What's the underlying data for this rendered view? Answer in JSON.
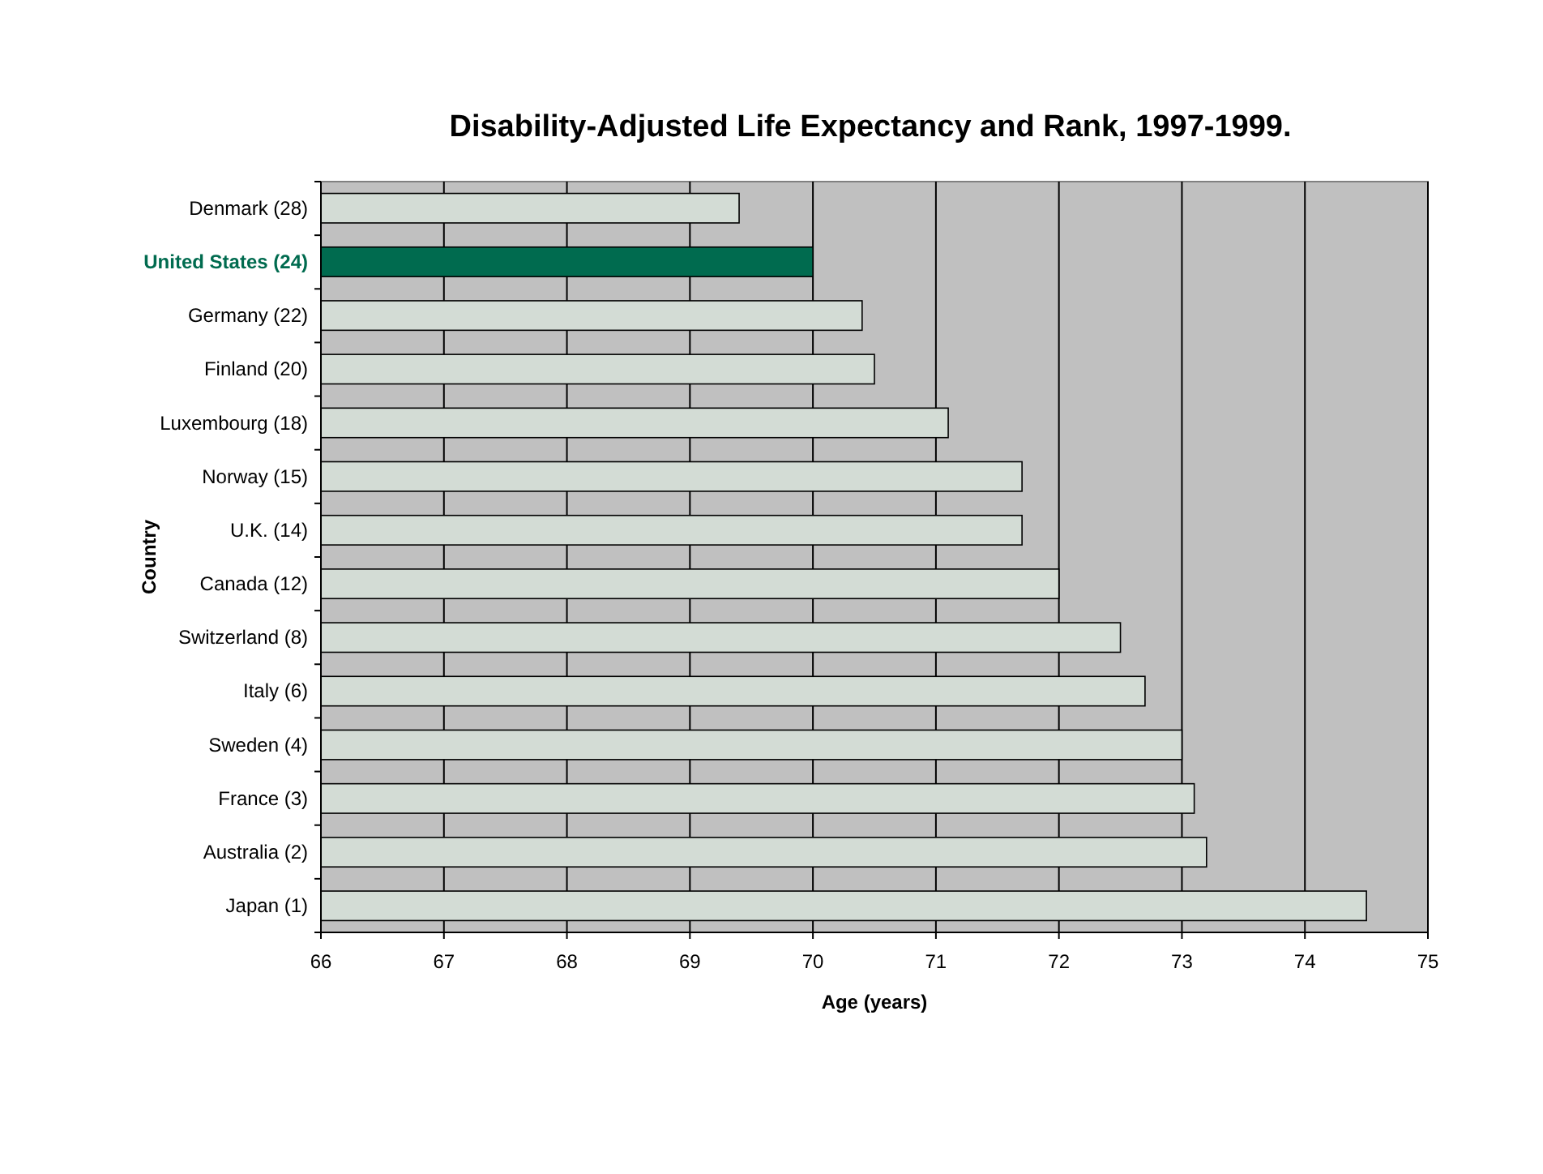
{
  "chart_data": {
    "type": "bar",
    "orientation": "horizontal",
    "title": "Disability-Adjusted Life Expectancy and Rank, 1997-1999.",
    "xlabel": "Age (years)",
    "ylabel": "Country",
    "categories": [
      "Denmark (28)",
      "United States (24)",
      "Germany (22)",
      "Finland (20)",
      "Luxembourg (18)",
      "Norway (15)",
      "U.K. (14)",
      "Canada (12)",
      "Switzerland (8)",
      "Italy (6)",
      "Sweden (4)",
      "France (3)",
      "Australia (2)",
      "Japan (1)"
    ],
    "values": [
      69.4,
      70.0,
      70.4,
      70.5,
      71.1,
      71.7,
      71.7,
      72.0,
      72.5,
      72.7,
      73.0,
      73.1,
      73.2,
      74.5
    ],
    "colors": [
      "#d3dcd5",
      "#006b4f",
      "#d3dcd5",
      "#d3dcd5",
      "#d3dcd5",
      "#d3dcd5",
      "#d3dcd5",
      "#d3dcd5",
      "#d3dcd5",
      "#d3dcd5",
      "#d3dcd5",
      "#d3dcd5",
      "#d3dcd5",
      "#d3dcd5"
    ],
    "xlim": [
      66,
      75
    ],
    "xticks": [
      66,
      67,
      68,
      69,
      70,
      71,
      72,
      73,
      74,
      75
    ],
    "grid": "x"
  }
}
